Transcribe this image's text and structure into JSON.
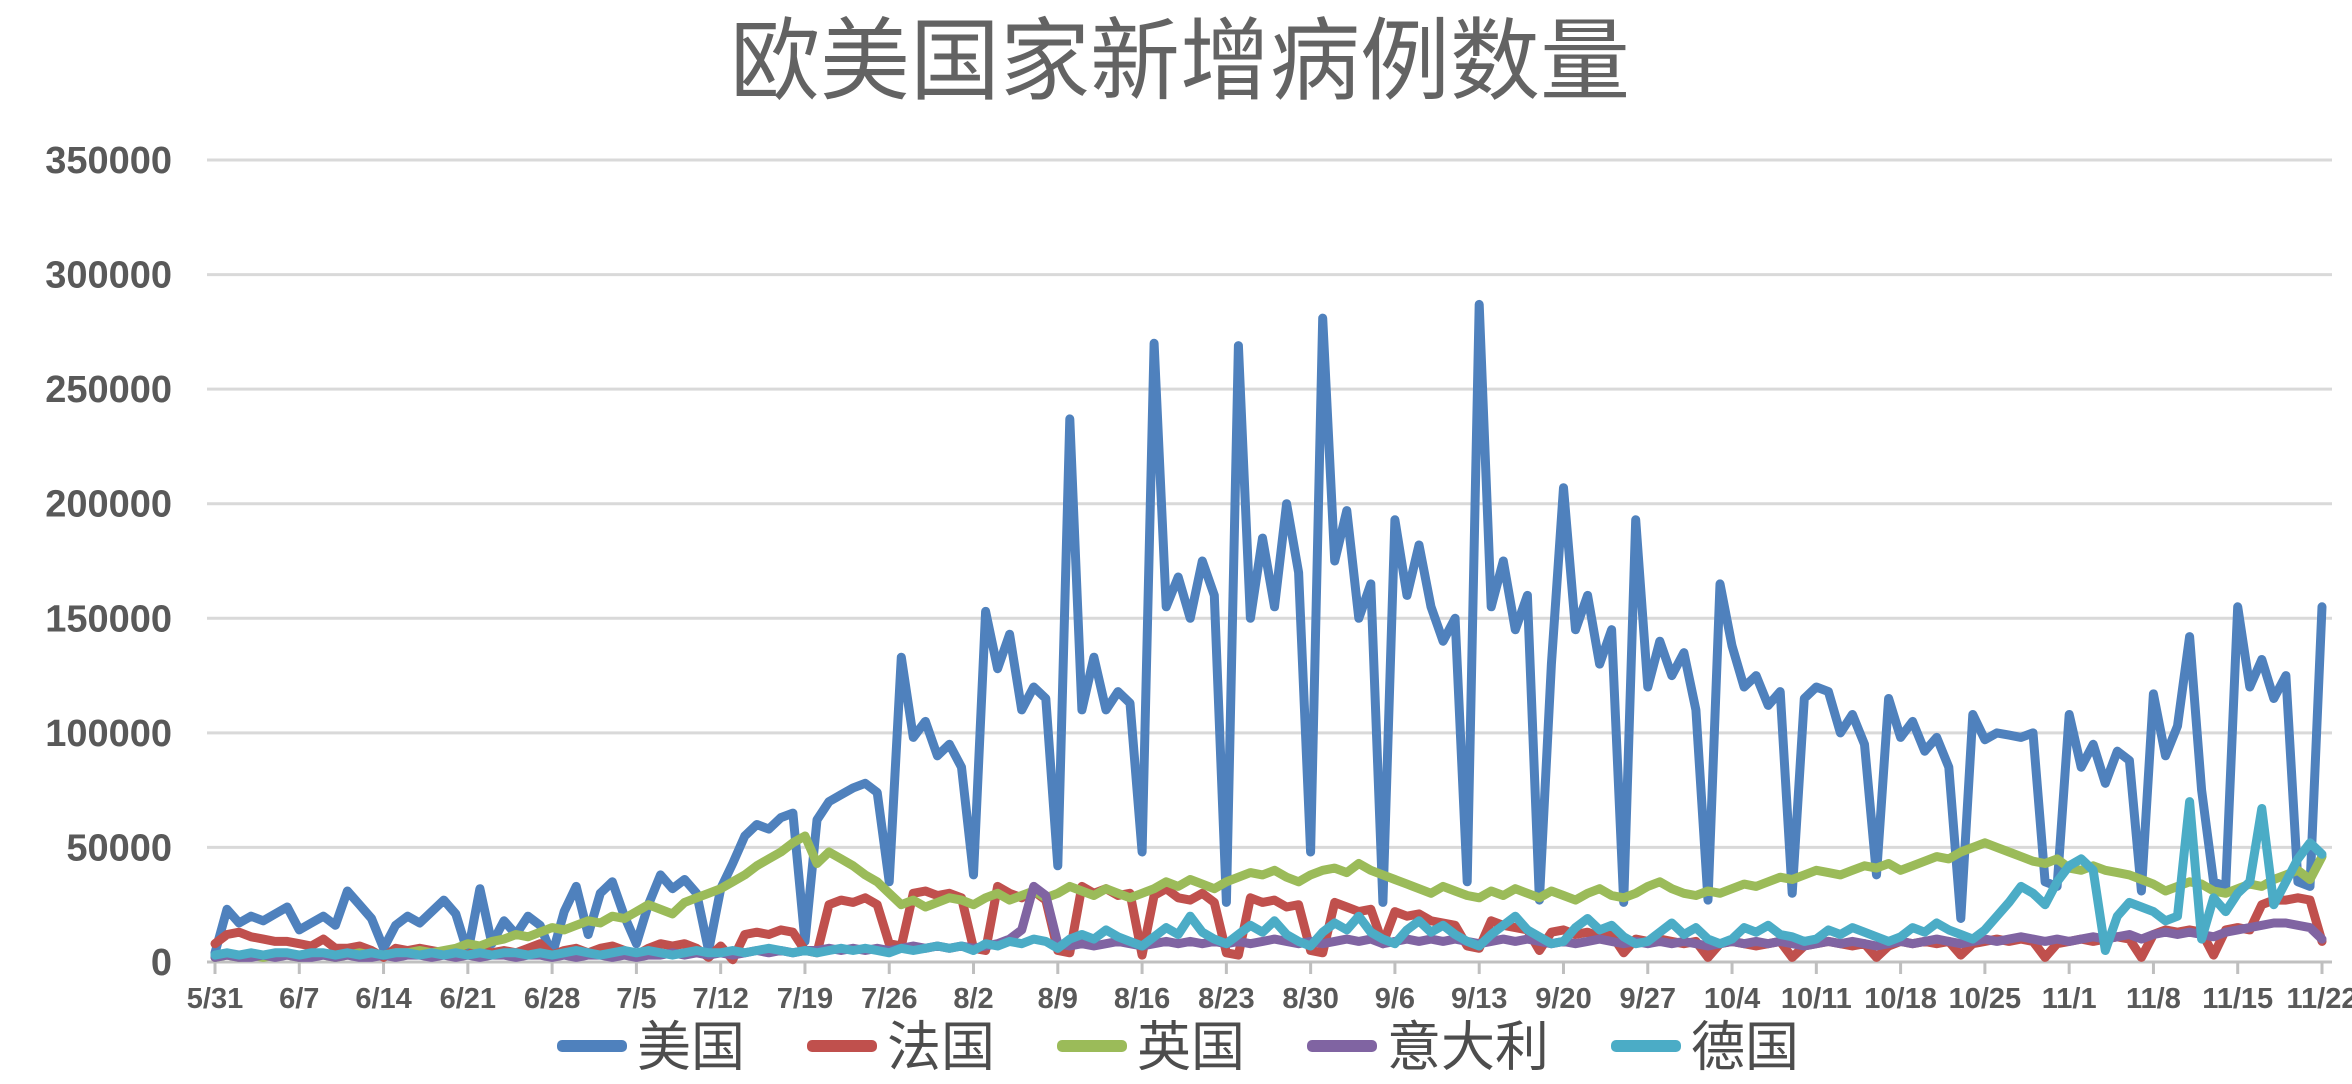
{
  "chart_data": {
    "type": "line",
    "title": "欧美国家新增病例数量",
    "xlabel": "",
    "ylabel": "",
    "ylim": [
      0,
      350000
    ],
    "y_ticks": [
      0,
      50000,
      100000,
      150000,
      200000,
      250000,
      300000,
      350000
    ],
    "grid": "horizontal",
    "legend_position": "bottom",
    "n_points": 176,
    "x_range_dates": "5/31 - 11/22 (daily)",
    "x_tick_labels": [
      "5/31",
      "6/7",
      "6/14",
      "6/21",
      "6/28",
      "7/5",
      "7/12",
      "7/19",
      "7/26",
      "8/2",
      "8/9",
      "8/16",
      "8/23",
      "8/30",
      "9/6",
      "9/13",
      "9/20",
      "9/27",
      "10/4",
      "10/11",
      "10/18",
      "10/25",
      "11/1",
      "11/8",
      "11/15",
      "11/22"
    ],
    "x_tick_indices": [
      0,
      7,
      14,
      21,
      28,
      35,
      42,
      49,
      56,
      63,
      70,
      77,
      84,
      91,
      98,
      105,
      112,
      119,
      126,
      133,
      140,
      147,
      154,
      161,
      168,
      175
    ],
    "series": [
      {
        "name": "美国",
        "key": "usa",
        "color": "#4F81BD",
        "values": [
          4000,
          23000,
          17000,
          20000,
          18000,
          21000,
          24000,
          14000,
          17000,
          20000,
          16000,
          31000,
          25000,
          19000,
          6000,
          16000,
          20000,
          17000,
          22000,
          27000,
          21000,
          4000,
          32000,
          8000,
          18000,
          12000,
          20000,
          16000,
          3000,
          22000,
          33000,
          12000,
          30000,
          35000,
          20000,
          8000,
          25000,
          38000,
          32000,
          36000,
          30000,
          5000,
          32000,
          43000,
          55000,
          60000,
          58000,
          63000,
          65000,
          9000,
          62000,
          70000,
          73000,
          76000,
          78000,
          74000,
          35000,
          133000,
          98000,
          105000,
          90000,
          95000,
          85000,
          38000,
          153000,
          128000,
          143000,
          110000,
          120000,
          115000,
          42000,
          237000,
          110000,
          133000,
          110000,
          118000,
          113000,
          48000,
          270000,
          155000,
          168000,
          150000,
          175000,
          160000,
          26000,
          269000,
          150000,
          185000,
          155000,
          200000,
          170000,
          48000,
          281000,
          175000,
          197000,
          150000,
          165000,
          26000,
          193000,
          160000,
          182000,
          155000,
          140000,
          150000,
          35000,
          287000,
          155000,
          175000,
          145000,
          160000,
          27000,
          130000,
          207000,
          145000,
          160000,
          130000,
          145000,
          26000,
          193000,
          120000,
          140000,
          125000,
          135000,
          110000,
          27000,
          165000,
          138000,
          120000,
          125000,
          112000,
          118000,
          30000,
          115000,
          120000,
          118000,
          100000,
          108000,
          95000,
          38000,
          115000,
          98000,
          105000,
          92000,
          98000,
          85000,
          19000,
          108000,
          97000,
          100000,
          99000,
          98000,
          100000,
          35000,
          33000,
          108000,
          85000,
          95000,
          78000,
          92000,
          88000,
          31000,
          117000,
          90000,
          103000,
          142000,
          75000,
          35000,
          33000,
          155000,
          120000,
          132000,
          115000,
          125000,
          35000,
          33000,
          155000
        ]
      },
      {
        "name": "法国",
        "key": "france",
        "color": "#C0504D",
        "values": [
          8000,
          12000,
          13000,
          11000,
          10000,
          9000,
          9000,
          8000,
          7000,
          10000,
          6000,
          6000,
          7000,
          5000,
          2000,
          6000,
          5000,
          6000,
          5000,
          4000,
          5000,
          3000,
          6000,
          4000,
          5000,
          4000,
          6000,
          8000,
          3000,
          5000,
          6000,
          4000,
          6000,
          7000,
          5000,
          3000,
          6000,
          8000,
          7000,
          8000,
          6000,
          2000,
          7000,
          1000,
          12000,
          13000,
          12000,
          14000,
          13000,
          5000,
          4000,
          25000,
          27000,
          26000,
          28000,
          25000,
          8000,
          7000,
          30000,
          31000,
          29000,
          30000,
          28000,
          6000,
          5000,
          33000,
          30000,
          28000,
          31000,
          27000,
          5000,
          4000,
          33000,
          30000,
          32000,
          29000,
          30000,
          3000,
          29000,
          32000,
          28000,
          27000,
          30000,
          26000,
          4000,
          3000,
          28000,
          26000,
          27000,
          24000,
          25000,
          5000,
          4000,
          26000,
          24000,
          22000,
          23000,
          8000,
          22000,
          20000,
          21000,
          18000,
          17000,
          16000,
          7000,
          6000,
          18000,
          16000,
          15000,
          14000,
          5000,
          13000,
          14000,
          12000,
          13000,
          11000,
          12000,
          4000,
          10000,
          9000,
          10000,
          9000,
          8000,
          9000,
          2000,
          8000,
          9000,
          8000,
          7000,
          8000,
          9000,
          2000,
          7000,
          8000,
          9000,
          8000,
          7000,
          8000,
          2000,
          7000,
          9000,
          8000,
          9000,
          8000,
          9000,
          3000,
          8000,
          9000,
          10000,
          9000,
          10000,
          9000,
          2000,
          8000,
          9000,
          10000,
          9000,
          10000,
          11000,
          10000,
          2000,
          12000,
          14000,
          13000,
          14000,
          13000,
          3000,
          14000,
          15000,
          14000,
          25000,
          27000,
          27000,
          28000,
          27000,
          9000
        ]
      },
      {
        "name": "英国",
        "key": "uk",
        "color": "#9BBB59",
        "values": [
          2000,
          3000,
          2000,
          3000,
          2000,
          3000,
          3000,
          2000,
          3000,
          3000,
          2000,
          3000,
          4000,
          3000,
          3000,
          4000,
          4000,
          5000,
          4000,
          5000,
          6000,
          8000,
          7000,
          9000,
          10000,
          12000,
          11000,
          13000,
          15000,
          14000,
          16000,
          18000,
          17000,
          20000,
          19000,
          22000,
          25000,
          23000,
          21000,
          26000,
          28000,
          30000,
          32000,
          35000,
          38000,
          42000,
          45000,
          48000,
          52000,
          55000,
          43000,
          48000,
          45000,
          42000,
          38000,
          35000,
          30000,
          25000,
          27000,
          24000,
          26000,
          28000,
          27000,
          25000,
          28000,
          30000,
          27000,
          29000,
          31000,
          28000,
          30000,
          33000,
          31000,
          29000,
          32000,
          30000,
          28000,
          30000,
          32000,
          35000,
          33000,
          36000,
          34000,
          32000,
          35000,
          37000,
          39000,
          38000,
          40000,
          37000,
          35000,
          38000,
          40000,
          41000,
          39000,
          43000,
          40000,
          38000,
          36000,
          34000,
          32000,
          30000,
          33000,
          31000,
          29000,
          28000,
          31000,
          29000,
          32000,
          30000,
          28000,
          31000,
          29000,
          27000,
          30000,
          32000,
          29000,
          28000,
          30000,
          33000,
          35000,
          32000,
          30000,
          29000,
          31000,
          30000,
          32000,
          34000,
          33000,
          35000,
          37000,
          36000,
          38000,
          40000,
          39000,
          38000,
          40000,
          42000,
          41000,
          43000,
          40000,
          42000,
          44000,
          46000,
          45000,
          48000,
          50000,
          52000,
          50000,
          48000,
          46000,
          44000,
          43000,
          45000,
          41000,
          40000,
          42000,
          40000,
          39000,
          38000,
          36000,
          34000,
          31000,
          33000,
          35000,
          34000,
          31000,
          30000,
          32000,
          34000,
          33000,
          36000,
          38000,
          40000,
          36000,
          46000
        ]
      },
      {
        "name": "意大利",
        "key": "italy",
        "color": "#8064A2",
        "values": [
          2000,
          3000,
          2000,
          2000,
          3000,
          2000,
          3000,
          2000,
          2000,
          3000,
          2000,
          3000,
          2000,
          2000,
          3000,
          2000,
          3000,
          3000,
          2000,
          3000,
          2000,
          3000,
          2000,
          3000,
          3000,
          2000,
          3000,
          3000,
          2000,
          3000,
          2000,
          3000,
          3000,
          2000,
          3000,
          2000,
          3000,
          3000,
          4000,
          3000,
          4000,
          3000,
          4000,
          3000,
          4000,
          5000,
          4000,
          5000,
          4000,
          5000,
          5000,
          6000,
          5000,
          6000,
          5000,
          6000,
          5000,
          6000,
          7000,
          6000,
          7000,
          6000,
          7000,
          6000,
          7000,
          8000,
          10000,
          14000,
          33000,
          29000,
          8000,
          7000,
          8000,
          7000,
          8000,
          9000,
          8000,
          7000,
          8000,
          9000,
          8000,
          9000,
          8000,
          9000,
          8000,
          9000,
          8000,
          9000,
          10000,
          9000,
          8000,
          9000,
          8000,
          9000,
          10000,
          9000,
          10000,
          8000,
          9000,
          10000,
          9000,
          10000,
          9000,
          10000,
          9000,
          8000,
          9000,
          10000,
          9000,
          10000,
          9000,
          8000,
          9000,
          8000,
          9000,
          10000,
          9000,
          8000,
          9000,
          8000,
          9000,
          8000,
          9000,
          8000,
          7000,
          8000,
          9000,
          8000,
          9000,
          8000,
          9000,
          8000,
          7000,
          8000,
          9000,
          8000,
          9000,
          8000,
          7000,
          8000,
          9000,
          8000,
          9000,
          10000,
          9000,
          8000,
          9000,
          10000,
          9000,
          10000,
          11000,
          10000,
          9000,
          10000,
          9000,
          10000,
          11000,
          10000,
          11000,
          12000,
          10000,
          12000,
          13000,
          12000,
          13000,
          12000,
          11000,
          13000,
          14000,
          15000,
          16000,
          17000,
          17000,
          16000,
          15000,
          10000
        ]
      },
      {
        "name": "德国",
        "key": "germany",
        "color": "#4BACC6",
        "values": [
          3000,
          4000,
          3000,
          4000,
          3000,
          4000,
          4000,
          3000,
          4000,
          4000,
          3000,
          4000,
          3000,
          4000,
          3000,
          4000,
          4000,
          3000,
          4000,
          3000,
          4000,
          3000,
          4000,
          3000,
          4000,
          4000,
          3000,
          4000,
          3000,
          4000,
          5000,
          4000,
          3000,
          4000,
          5000,
          4000,
          5000,
          4000,
          3000,
          4000,
          5000,
          4000,
          4000,
          5000,
          4000,
          5000,
          6000,
          5000,
          4000,
          5000,
          4000,
          5000,
          6000,
          5000,
          6000,
          5000,
          4000,
          6000,
          5000,
          6000,
          7000,
          6000,
          7000,
          5000,
          8000,
          7000,
          9000,
          8000,
          10000,
          9000,
          6000,
          10000,
          12000,
          10000,
          14000,
          11000,
          9000,
          7000,
          11000,
          15000,
          12000,
          20000,
          13000,
          10000,
          8000,
          12000,
          16000,
          13000,
          18000,
          12000,
          9000,
          7000,
          13000,
          17000,
          14000,
          20000,
          13000,
          10000,
          8000,
          14000,
          18000,
          13000,
          16000,
          12000,
          9000,
          7000,
          12000,
          16000,
          20000,
          14000,
          11000,
          8000,
          9000,
          15000,
          19000,
          14000,
          16000,
          11000,
          8000,
          9000,
          13000,
          17000,
          12000,
          15000,
          10000,
          8000,
          10000,
          15000,
          13000,
          16000,
          12000,
          11000,
          9000,
          10000,
          14000,
          12000,
          15000,
          13000,
          11000,
          9000,
          11000,
          15000,
          13000,
          17000,
          14000,
          12000,
          10000,
          14000,
          20000,
          26000,
          33000,
          30000,
          25000,
          35000,
          42000,
          45000,
          40000,
          5000,
          20000,
          26000,
          24000,
          22000,
          18000,
          20000,
          70000,
          10000,
          28000,
          22000,
          30000,
          35000,
          67000,
          25000,
          35000,
          45000,
          52000,
          47000
        ]
      }
    ]
  },
  "styles": {
    "background": "#FFFFFF",
    "grid_color": "#D9D9D9",
    "axis_color": "#C0C0C0",
    "tick_color": "#BFBFBF",
    "label_color": "#595959",
    "title_color": "#636363"
  }
}
